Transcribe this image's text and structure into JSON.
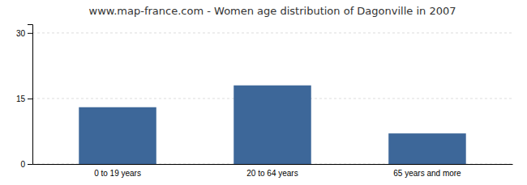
{
  "chart_data": {
    "type": "bar",
    "title": "www.map-france.com - Women age distribution of Dagonville in 2007",
    "categories": [
      "0 to 19 years",
      "20 to 64 years",
      "65 years and more"
    ],
    "values": [
      13,
      18,
      7
    ],
    "color": "#3d6799",
    "ylim": [
      0,
      32
    ],
    "yticks": [
      0,
      15,
      30
    ],
    "grid": true
  }
}
